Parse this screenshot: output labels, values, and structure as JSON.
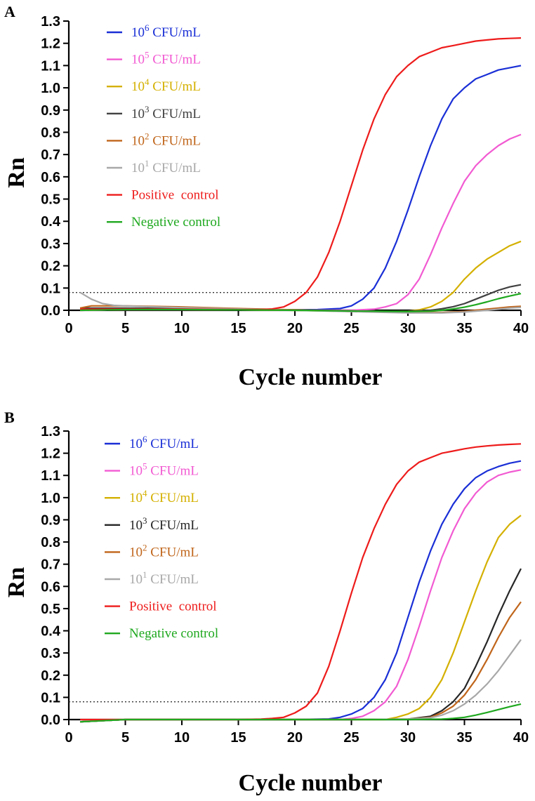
{
  "chart_data": [
    {
      "type": "line",
      "panel_label": "A",
      "xlabel": "Cycle number",
      "ylabel": "Rn",
      "xlim": [
        0,
        40
      ],
      "ylim": [
        0.0,
        1.3
      ],
      "xticks": [
        "0",
        "5",
        "10",
        "15",
        "20",
        "25",
        "30",
        "35",
        "40"
      ],
      "yticks": [
        "0.0",
        "0.1",
        "0.2",
        "0.3",
        "0.4",
        "0.5",
        "0.6",
        "0.7",
        "0.8",
        "0.9",
        "1.0",
        "1.1",
        "1.2",
        "1.3"
      ],
      "threshold": 0.08,
      "grid": false,
      "legend_position": "top-left",
      "series": [
        {
          "legend_base": "10",
          "legend_sup": "6",
          "legend_rest": " CFU/mL",
          "color": "#1a2fd6",
          "x": [
            1,
            5,
            10,
            15,
            20,
            22,
            24,
            25,
            26,
            27,
            28,
            29,
            30,
            31,
            32,
            33,
            34,
            35,
            36,
            37,
            38,
            39,
            40
          ],
          "y": [
            0.0,
            0.003,
            0.003,
            0.002,
            0.002,
            0.003,
            0.008,
            0.02,
            0.05,
            0.1,
            0.19,
            0.31,
            0.45,
            0.6,
            0.74,
            0.86,
            0.95,
            1.0,
            1.04,
            1.06,
            1.08,
            1.09,
            1.1
          ]
        },
        {
          "legend_base": "10",
          "legend_sup": "5",
          "legend_rest": " CFU/mL",
          "color": "#f25ad2",
          "x": [
            1,
            5,
            10,
            15,
            20,
            25,
            27,
            28,
            29,
            30,
            31,
            32,
            33,
            34,
            35,
            36,
            37,
            38,
            39,
            40
          ],
          "y": [
            0.0,
            0.003,
            0.003,
            0.002,
            0.001,
            0.0,
            0.005,
            0.015,
            0.03,
            0.07,
            0.14,
            0.25,
            0.37,
            0.48,
            0.58,
            0.65,
            0.7,
            0.74,
            0.77,
            0.79
          ]
        },
        {
          "legend_base": "10",
          "legend_sup": "4",
          "legend_rest": " CFU/mL",
          "color": "#d4b000",
          "x": [
            1,
            5,
            10,
            15,
            20,
            25,
            28,
            30,
            31,
            32,
            33,
            34,
            35,
            36,
            37,
            38,
            39,
            40
          ],
          "y": [
            0.0,
            0.003,
            0.003,
            0.002,
            0.0,
            -0.005,
            -0.006,
            -0.004,
            0.002,
            0.015,
            0.04,
            0.08,
            0.14,
            0.19,
            0.23,
            0.26,
            0.29,
            0.31
          ]
        },
        {
          "legend_base": "10",
          "legend_sup": "3",
          "legend_rest": " CFU/mL",
          "color": "#404040",
          "x": [
            1,
            5,
            10,
            15,
            20,
            25,
            28,
            30,
            32,
            33,
            34,
            35,
            36,
            37,
            38,
            39,
            40
          ],
          "y": [
            0.01,
            0.01,
            0.008,
            0.005,
            0.002,
            -0.003,
            -0.005,
            -0.004,
            0.0,
            0.007,
            0.016,
            0.03,
            0.05,
            0.07,
            0.09,
            0.105,
            0.115
          ]
        },
        {
          "legend_base": "10",
          "legend_sup": "2",
          "legend_rest": " CFU/mL",
          "color": "#c0651a",
          "x": [
            1,
            2,
            3,
            5,
            10,
            15,
            20,
            25,
            30,
            33,
            35,
            37,
            38,
            39,
            40
          ],
          "y": [
            0.01,
            0.02,
            0.02,
            0.02,
            0.015,
            0.008,
            0.002,
            -0.005,
            -0.01,
            -0.01,
            -0.005,
            0.005,
            0.01,
            0.015,
            0.018
          ]
        },
        {
          "legend_base": "10",
          "legend_sup": "1",
          "legend_rest": " CFU/mL",
          "color": "#a8a8a8",
          "x": [
            1,
            2,
            3,
            4,
            5,
            7,
            10,
            15,
            20,
            25,
            30,
            33,
            35,
            37,
            38,
            39,
            40
          ],
          "y": [
            0.08,
            0.05,
            0.03,
            0.022,
            0.02,
            0.016,
            0.012,
            0.006,
            0.0,
            -0.006,
            -0.012,
            -0.012,
            -0.008,
            0.0,
            0.005,
            0.01,
            0.013
          ]
        },
        {
          "legend_label": "Positive  control",
          "color": "#ee1b1b",
          "x": [
            1,
            5,
            10,
            15,
            17,
            18,
            19,
            20,
            21,
            22,
            23,
            24,
            25,
            26,
            27,
            28,
            29,
            30,
            31,
            32,
            33,
            34,
            35,
            36,
            37,
            38,
            39,
            40
          ],
          "y": [
            0.005,
            0.005,
            0.005,
            0.003,
            0.003,
            0.006,
            0.015,
            0.04,
            0.08,
            0.15,
            0.26,
            0.4,
            0.56,
            0.72,
            0.86,
            0.97,
            1.05,
            1.1,
            1.14,
            1.16,
            1.18,
            1.19,
            1.2,
            1.21,
            1.215,
            1.22,
            1.222,
            1.224
          ]
        },
        {
          "legend_label": "Negative control",
          "color": "#1fa81f",
          "x": [
            1,
            5,
            10,
            15,
            20,
            25,
            30,
            32,
            33,
            34,
            35,
            36,
            37,
            38,
            39,
            40
          ],
          "y": [
            0.0,
            0.003,
            0.003,
            0.002,
            0.0,
            -0.003,
            -0.006,
            -0.004,
            0.0,
            0.006,
            0.014,
            0.025,
            0.038,
            0.052,
            0.064,
            0.075
          ]
        }
      ]
    },
    {
      "type": "line",
      "panel_label": "B",
      "xlabel": "Cycle number",
      "ylabel": "Rn",
      "xlim": [
        0,
        40
      ],
      "ylim": [
        0.0,
        1.3
      ],
      "xticks": [
        "0",
        "5",
        "10",
        "15",
        "20",
        "25",
        "30",
        "35",
        "40"
      ],
      "yticks": [
        "0.0",
        "0.1",
        "0.2",
        "0.3",
        "0.4",
        "0.5",
        "0.6",
        "0.7",
        "0.8",
        "0.9",
        "1.0",
        "1.1",
        "1.2",
        "1.3"
      ],
      "threshold": 0.08,
      "grid": false,
      "legend_position": "top-left",
      "series": [
        {
          "legend_base": "10",
          "legend_sup": "6",
          "legend_rest": " CFU/mL",
          "color": "#1a2fd6",
          "x": [
            1,
            5,
            10,
            15,
            20,
            23,
            24,
            25,
            26,
            27,
            28,
            29,
            30,
            31,
            32,
            33,
            34,
            35,
            36,
            37,
            38,
            39,
            40
          ],
          "y": [
            -0.01,
            0.0,
            0.0,
            0.0,
            0.0,
            0.003,
            0.01,
            0.025,
            0.05,
            0.1,
            0.18,
            0.3,
            0.46,
            0.62,
            0.76,
            0.88,
            0.97,
            1.04,
            1.09,
            1.12,
            1.14,
            1.155,
            1.165
          ]
        },
        {
          "legend_base": "10",
          "legend_sup": "5",
          "legend_rest": " CFU/mL",
          "color": "#f25ad2",
          "x": [
            1,
            5,
            10,
            15,
            20,
            24,
            25,
            26,
            27,
            28,
            29,
            30,
            31,
            32,
            33,
            34,
            35,
            36,
            37,
            38,
            39,
            40
          ],
          "y": [
            -0.01,
            0.0,
            0.0,
            0.0,
            0.0,
            0.0,
            0.005,
            0.015,
            0.04,
            0.08,
            0.15,
            0.27,
            0.42,
            0.58,
            0.73,
            0.85,
            0.95,
            1.02,
            1.07,
            1.1,
            1.115,
            1.125
          ]
        },
        {
          "legend_base": "10",
          "legend_sup": "4",
          "legend_rest": " CFU/mL",
          "color": "#d4b000",
          "x": [
            1,
            5,
            10,
            15,
            20,
            25,
            28,
            29,
            30,
            31,
            32,
            33,
            34,
            35,
            36,
            37,
            38,
            39,
            40
          ],
          "y": [
            -0.01,
            0.0,
            0.0,
            0.0,
            0.0,
            0.0,
            0.0,
            0.01,
            0.025,
            0.05,
            0.1,
            0.18,
            0.3,
            0.44,
            0.58,
            0.71,
            0.82,
            0.88,
            0.92
          ]
        },
        {
          "legend_base": "10",
          "legend_sup": "3",
          "legend_rest": " CFU/mL",
          "color": "#262626",
          "x": [
            1,
            5,
            10,
            15,
            20,
            25,
            30,
            32,
            33,
            34,
            35,
            36,
            37,
            38,
            39,
            40
          ],
          "y": [
            -0.01,
            0.0,
            0.0,
            0.0,
            0.0,
            0.0,
            0.002,
            0.015,
            0.04,
            0.08,
            0.14,
            0.24,
            0.35,
            0.47,
            0.58,
            0.68
          ]
        },
        {
          "legend_base": "10",
          "legend_sup": "2",
          "legend_rest": " CFU/mL",
          "color": "#c0651a",
          "x": [
            1,
            5,
            10,
            15,
            20,
            25,
            30,
            32,
            33,
            34,
            35,
            36,
            37,
            38,
            39,
            40
          ],
          "y": [
            -0.01,
            0.0,
            0.0,
            0.0,
            0.0,
            0.0,
            0.002,
            0.01,
            0.03,
            0.06,
            0.11,
            0.18,
            0.27,
            0.37,
            0.46,
            0.53
          ]
        },
        {
          "legend_base": "10",
          "legend_sup": "1",
          "legend_rest": " CFU/mL",
          "color": "#a8a8a8",
          "x": [
            1,
            5,
            10,
            15,
            20,
            25,
            30,
            32,
            33,
            34,
            35,
            36,
            37,
            38,
            39,
            40
          ],
          "y": [
            -0.01,
            0.0,
            0.0,
            0.0,
            0.0,
            0.0,
            0.002,
            0.008,
            0.02,
            0.04,
            0.07,
            0.11,
            0.16,
            0.22,
            0.29,
            0.36
          ]
        },
        {
          "legend_label": "Positive  control",
          "color": "#ee1b1b",
          "x": [
            1,
            5,
            10,
            15,
            17,
            18,
            19,
            20,
            21,
            22,
            23,
            24,
            25,
            26,
            27,
            28,
            29,
            30,
            31,
            32,
            33,
            34,
            35,
            36,
            37,
            38,
            39,
            40
          ],
          "y": [
            0.0,
            0.0,
            0.0,
            0.0,
            0.002,
            0.005,
            0.01,
            0.03,
            0.06,
            0.12,
            0.24,
            0.4,
            0.57,
            0.73,
            0.86,
            0.97,
            1.06,
            1.12,
            1.16,
            1.18,
            1.2,
            1.21,
            1.22,
            1.228,
            1.233,
            1.237,
            1.24,
            1.242
          ]
        },
        {
          "legend_label": "Negative control",
          "color": "#1fa81f",
          "x": [
            1,
            5,
            10,
            15,
            20,
            25,
            30,
            33,
            34,
            35,
            36,
            37,
            38,
            39,
            40
          ],
          "y": [
            -0.01,
            0.0,
            0.0,
            0.0,
            0.0,
            0.0,
            0.0,
            0.002,
            0.005,
            0.01,
            0.02,
            0.032,
            0.045,
            0.058,
            0.07
          ]
        }
      ]
    }
  ]
}
